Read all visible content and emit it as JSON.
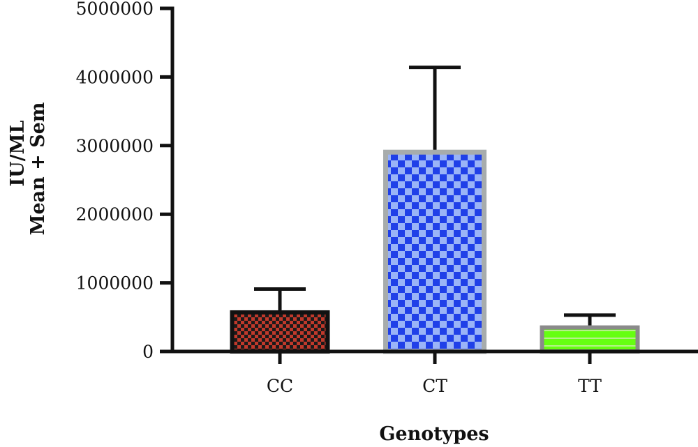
{
  "chart_data": {
    "type": "bar",
    "categories": [
      "CC",
      "CT",
      "TT"
    ],
    "values": [
      600000,
      2940000,
      380000
    ],
    "error_upper": [
      910000,
      4140000,
      530000
    ],
    "ylabel_line1": "IU/ML",
    "ylabel_line2": "Mean + Sem",
    "xlabel": "Genotypes",
    "ylim": [
      0,
      5000000
    ],
    "yticks": [
      0,
      1000000,
      2000000,
      3000000,
      4000000,
      5000000
    ],
    "ytick_labels": [
      "0",
      "1000000",
      "2000000",
      "3000000",
      "4000000",
      "5000000"
    ],
    "grid": false,
    "legend": "none",
    "bar_styles": [
      {
        "fill": "#c0392b",
        "pattern_color": "#1a1a1a",
        "border": "#111111",
        "pattern": "checker"
      },
      {
        "fill": "#9ab4f7",
        "pattern_color": "#2040e8",
        "border": "#a7acac",
        "pattern": "checker"
      },
      {
        "fill": "#66ff11",
        "pattern_color": "#b6f08a",
        "border": "#8a8a8a",
        "pattern": "stripes"
      }
    ]
  }
}
